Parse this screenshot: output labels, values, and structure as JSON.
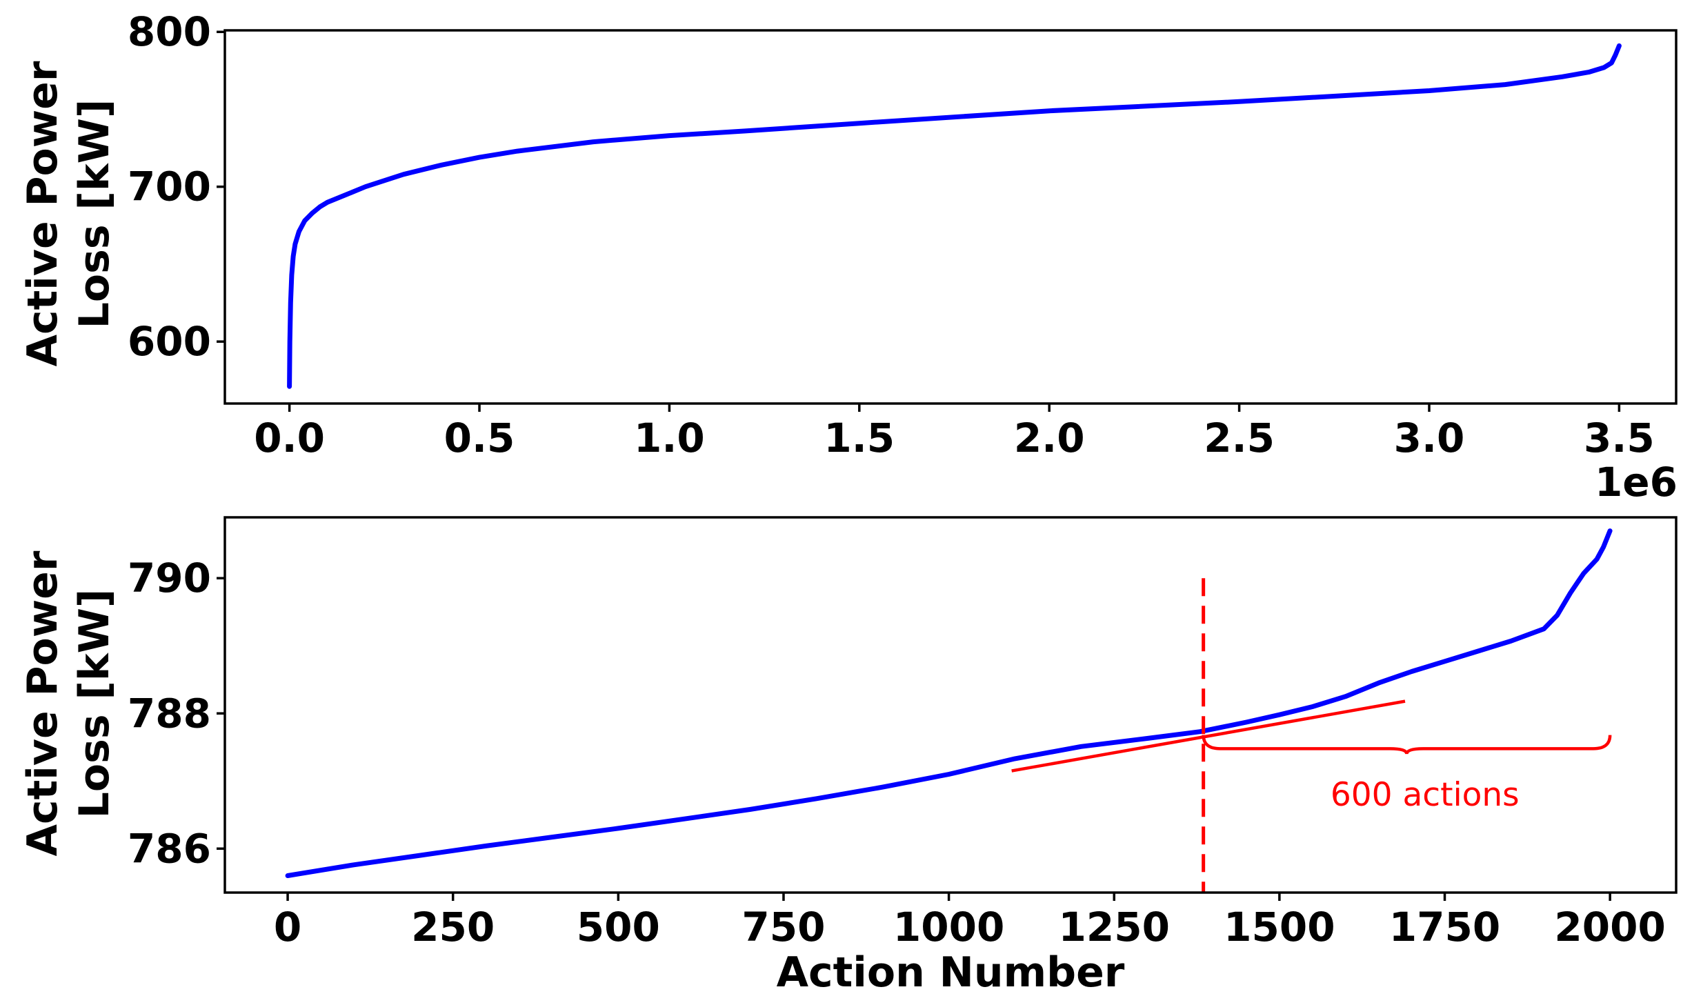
{
  "chart_data": [
    {
      "type": "line",
      "ylabel_lines": [
        "Active Power",
        "Loss [kW]"
      ],
      "xlabel": "",
      "xlim": [
        -170000,
        3650000
      ],
      "ylim": [
        560,
        801
      ],
      "x_ticks": [
        0,
        500000,
        1000000,
        1500000,
        2000000,
        2500000,
        3000000,
        3500000
      ],
      "x_tick_labels": [
        "0.0",
        "0.5",
        "1.0",
        "1.5",
        "2.0",
        "2.5",
        "3.0",
        "3.5"
      ],
      "x_offset_label": "1e6",
      "y_ticks": [
        600,
        700,
        800
      ],
      "y_tick_labels": [
        "600",
        "700",
        "800"
      ],
      "grid": false,
      "series": [
        {
          "color": "#0000ff",
          "x": [
            0,
            1000,
            3000,
            6000,
            10000,
            15000,
            25000,
            40000,
            60000,
            80000,
            100000,
            150000,
            200000,
            300000,
            400000,
            500000,
            600000,
            800000,
            1000000,
            1200000,
            1500000,
            2000000,
            2500000,
            3000000,
            3200000,
            3350000,
            3420000,
            3460000,
            3480000,
            3490000,
            3500000
          ],
          "y": [
            571,
            600,
            625,
            643,
            655,
            663,
            671,
            678,
            683,
            687,
            690,
            695,
            700,
            708,
            714,
            719,
            723,
            729,
            733,
            736,
            741,
            749,
            755,
            762,
            766,
            771,
            774,
            777,
            780,
            785,
            791
          ]
        }
      ]
    },
    {
      "type": "line",
      "ylabel_lines": [
        "Active Power",
        "Loss [kW]"
      ],
      "xlabel": "Action Number",
      "xlim": [
        -95,
        2100
      ],
      "ylim": [
        785.35,
        790.9
      ],
      "x_ticks": [
        0,
        250,
        500,
        750,
        1000,
        1250,
        1500,
        1750,
        2000
      ],
      "x_tick_labels": [
        "0",
        "250",
        "500",
        "750",
        "1000",
        "1250",
        "1500",
        "1750",
        "2000"
      ],
      "y_ticks": [
        786,
        788,
        790
      ],
      "y_tick_labels": [
        "786",
        "788",
        "790"
      ],
      "grid": false,
      "series": [
        {
          "color": "#0000ff",
          "x": [
            0,
            100,
            200,
            300,
            400,
            500,
            600,
            700,
            800,
            900,
            1000,
            1100,
            1200,
            1300,
            1380,
            1450,
            1500,
            1550,
            1600,
            1650,
            1700,
            1750,
            1800,
            1850,
            1900,
            1920,
            1940,
            1960,
            1980,
            1990,
            2000
          ],
          "y": [
            785.6,
            785.76,
            785.9,
            786.04,
            786.17,
            786.3,
            786.44,
            786.58,
            786.74,
            786.91,
            787.1,
            787.33,
            787.51,
            787.63,
            787.73,
            787.87,
            787.98,
            788.1,
            788.25,
            788.45,
            788.62,
            788.77,
            788.92,
            789.07,
            789.25,
            789.45,
            789.78,
            790.07,
            790.28,
            790.46,
            790.7
          ]
        }
      ],
      "annotations": {
        "trend_line": {
          "color": "#ff0000",
          "x": [
            1095,
            1690
          ],
          "y": [
            787.15,
            788.18
          ]
        },
        "vline": {
          "color": "#ff0000",
          "x": 1385,
          "y_range": [
            785.35,
            790.0
          ]
        },
        "brace": {
          "color": "#ff0000",
          "x_start": 1385,
          "x_end": 2000,
          "y_top": 787.68,
          "y_bottom": 787.4
        },
        "label": {
          "text": "600 actions",
          "x": 1720,
          "y": 786.8,
          "color": "#ff0000"
        }
      }
    }
  ]
}
